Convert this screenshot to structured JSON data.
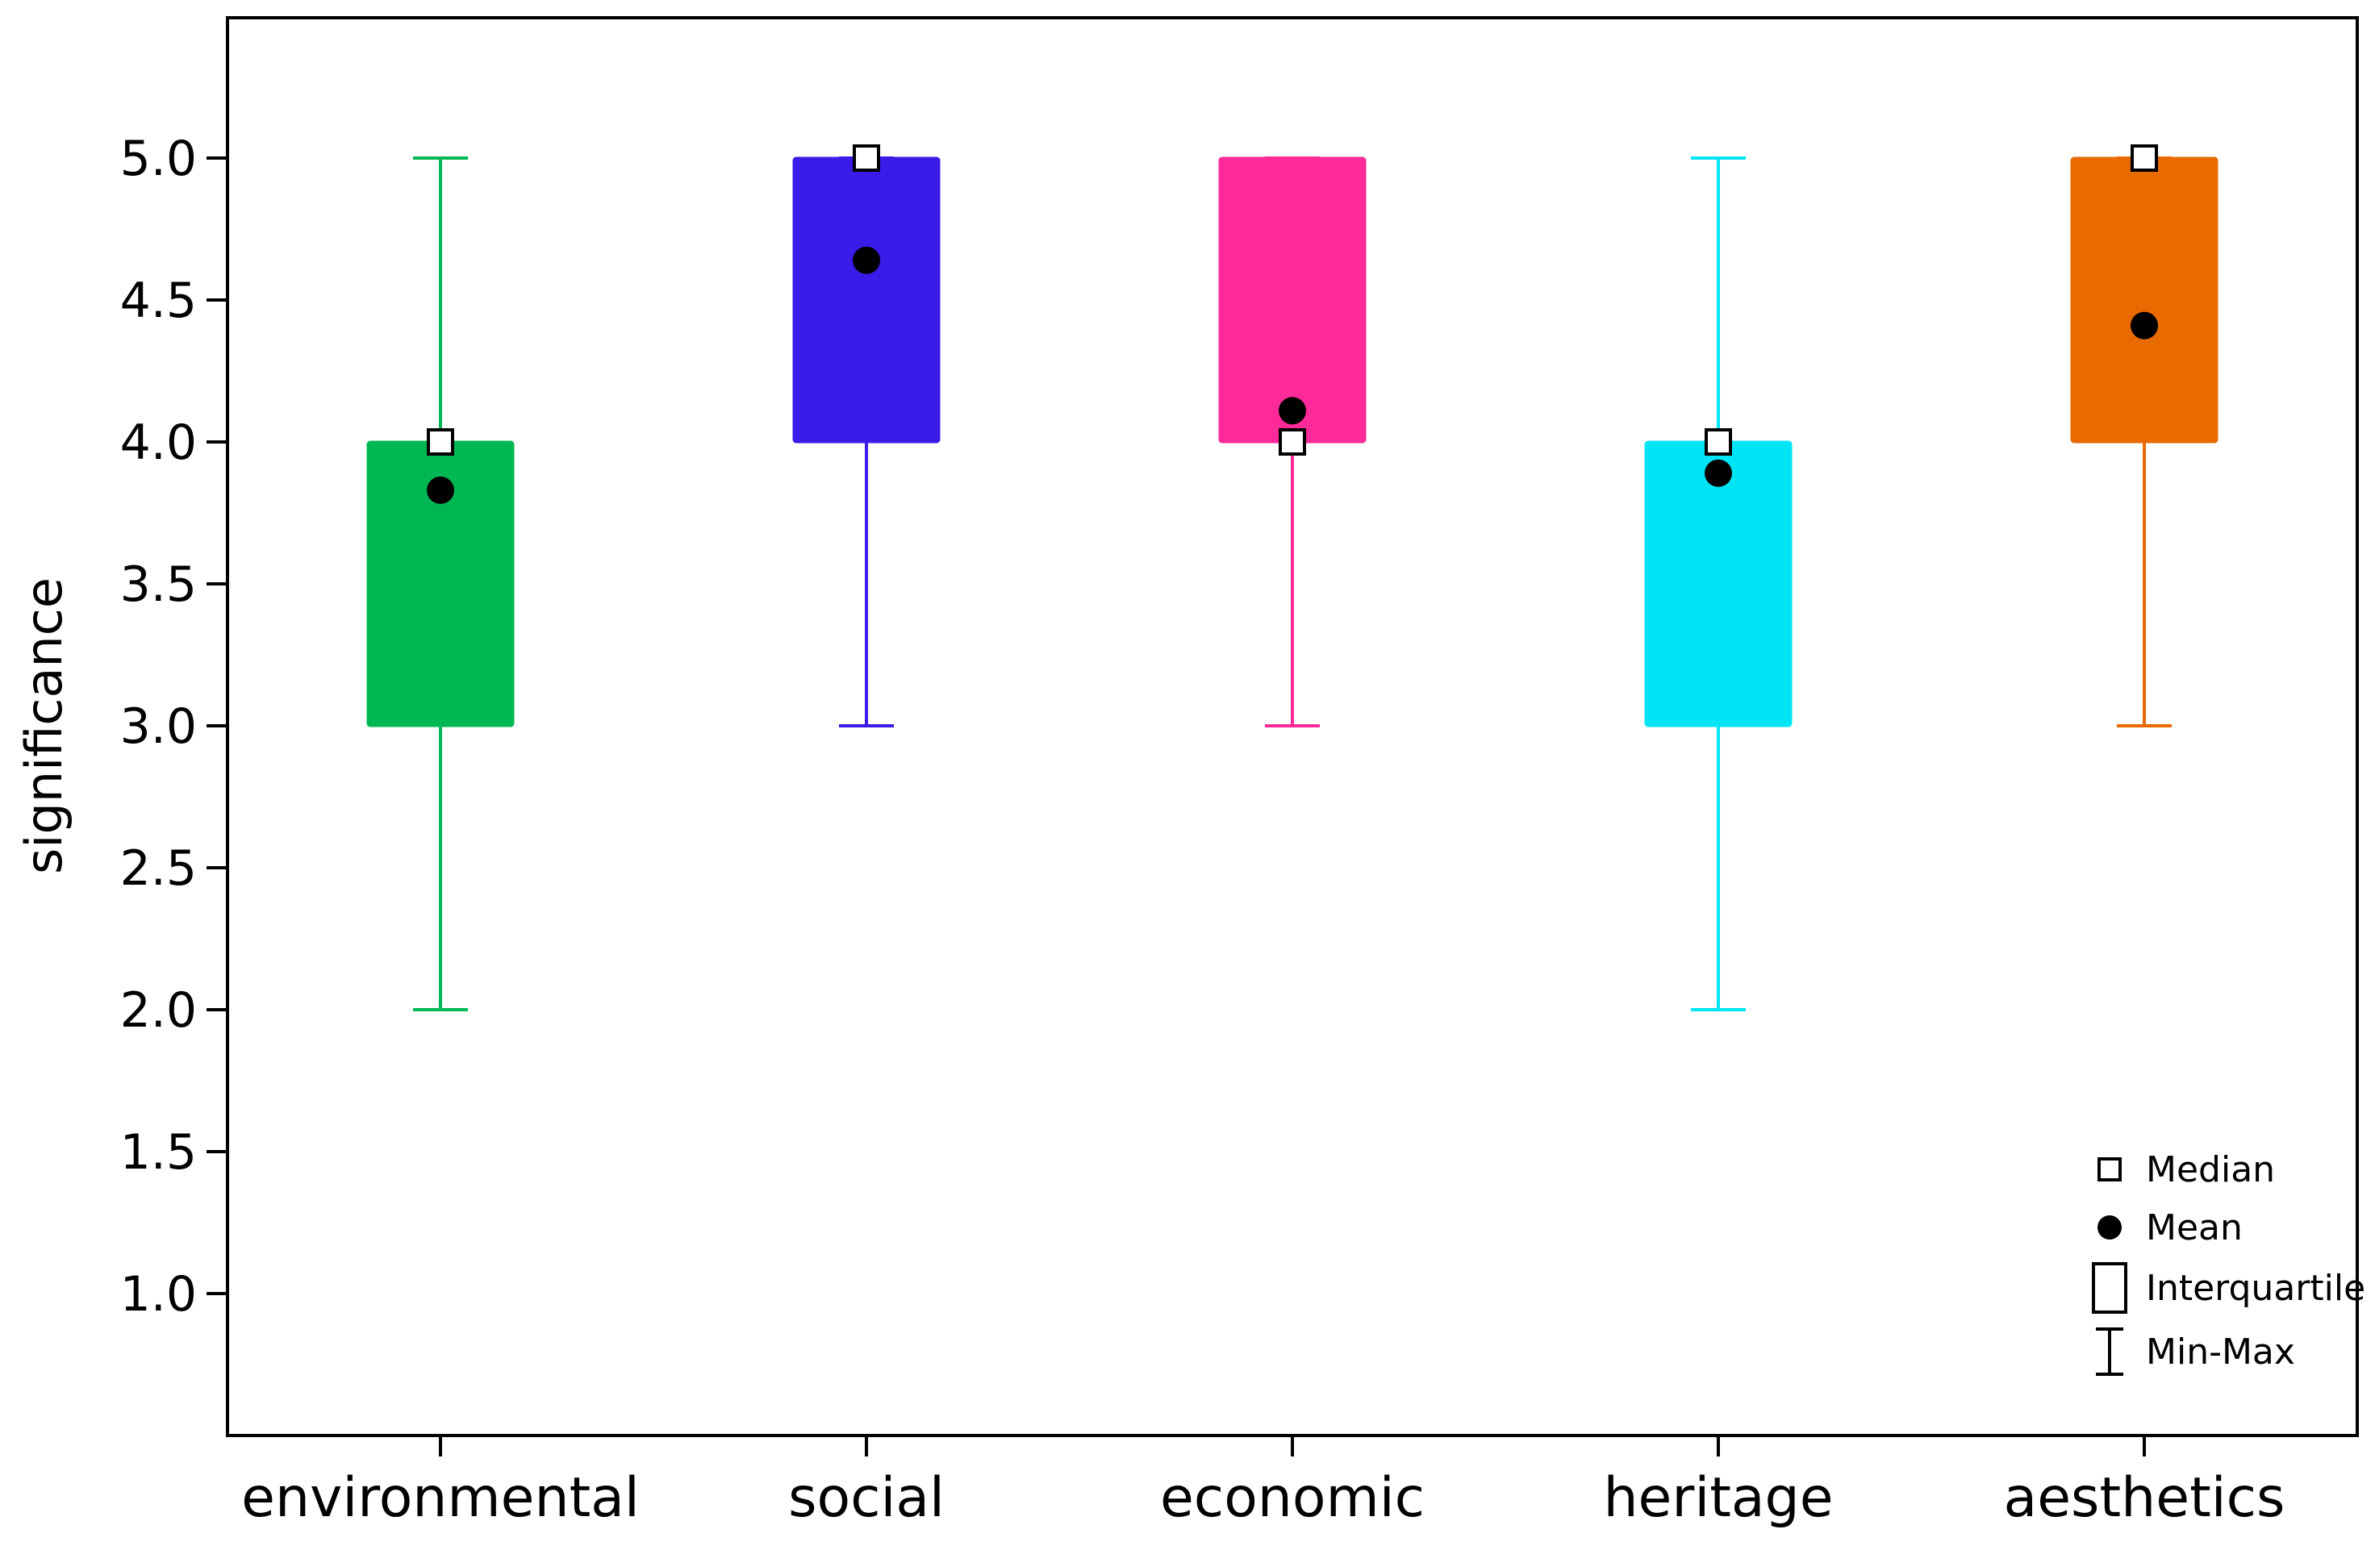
{
  "chart_data": {
    "type": "box",
    "title": "",
    "xlabel": "",
    "ylabel": "significance",
    "ylim": [
      0.5,
      5.5
    ],
    "yticks": [
      "1.0",
      "1.5",
      "2.0",
      "2.5",
      "3.0",
      "3.5",
      "4.0",
      "4.5",
      "5.0"
    ],
    "grid": false,
    "legend_position": "bottom-right",
    "categories": [
      "environmental",
      "social",
      "economic",
      "heritage",
      "aesthetics"
    ],
    "series": [
      {
        "category": "environmental",
        "min": 2.0,
        "q1": 3.0,
        "median": 4.0,
        "q3": 4.0,
        "max": 5.0,
        "mean": 3.83,
        "color": "#00b853"
      },
      {
        "category": "social",
        "min": 3.0,
        "q1": 4.0,
        "median": 5.0,
        "q3": 5.0,
        "max": 5.0,
        "mean": 4.64,
        "color": "#3a1ce8"
      },
      {
        "category": "economic",
        "min": 3.0,
        "q1": 4.0,
        "median": 4.0,
        "q3": 5.0,
        "max": 5.0,
        "mean": 4.11,
        "color": "#ff2a9a"
      },
      {
        "category": "heritage",
        "min": 2.0,
        "q1": 3.0,
        "median": 4.0,
        "q3": 4.0,
        "max": 5.0,
        "mean": 3.89,
        "color": "#00e5f5"
      },
      {
        "category": "aesthetics",
        "min": 3.0,
        "q1": 4.0,
        "median": 5.0,
        "q3": 5.0,
        "max": 5.0,
        "mean": 4.41,
        "color": "#e86a00"
      }
    ],
    "legend": [
      {
        "key": "median",
        "label": "Median"
      },
      {
        "key": "mean",
        "label": "Mean"
      },
      {
        "key": "iqr",
        "label": "Interquartile"
      },
      {
        "key": "range",
        "label": "Min-Max"
      }
    ]
  }
}
